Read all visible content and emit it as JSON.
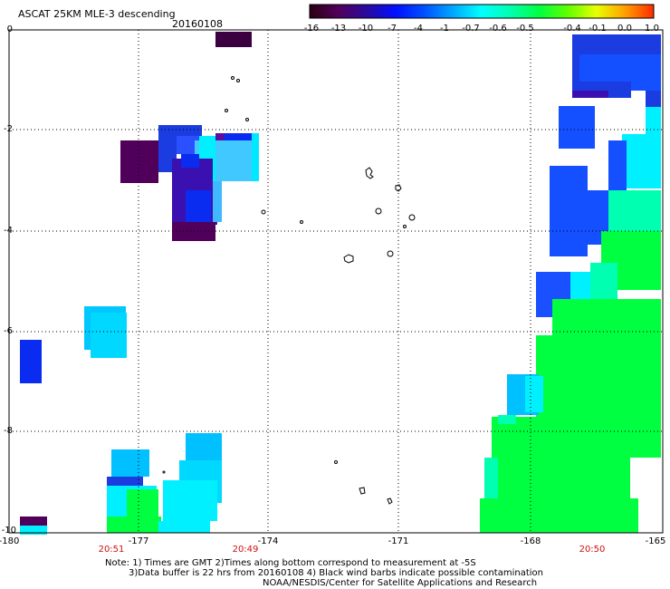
{
  "header": {
    "title": "ASCAT 25KM MLE-3 descending",
    "date": "20160108"
  },
  "colorbar": {
    "labels": [
      "-16",
      "-13",
      "-10",
      "-7",
      "-4",
      "-1",
      "-0.7",
      "-0.6",
      "-0.5",
      "-0.4",
      "-0.1",
      "0.0",
      "1.0"
    ],
    "colors": [
      "#2a0010",
      "#50005a",
      "#2a0aa0",
      "#0010ff",
      "#0050ff",
      "#00a8ff",
      "#00ffff",
      "#00ffb0",
      "#00ff40",
      "#60ff00",
      "#e8ff00",
      "#ffa000",
      "#ff2a00"
    ]
  },
  "axes": {
    "y_labels": [
      "0",
      "-2",
      "-4",
      "-6",
      "-8",
      "-10"
    ],
    "x_labels": [
      "-180",
      "-177",
      "-174",
      "-171",
      "-168",
      "-165"
    ],
    "times": [
      "20:51",
      "20:49",
      "20:50"
    ]
  },
  "notes": {
    "line1": "Note: 1) Times are GMT 2)Times along bottom correspond to measurement at -5S",
    "line2": "3)Data buffer is 22 hrs from 20160108 4) Black wind barbs indicate possible contamination",
    "line3": "NOAA/NESDIS/Center for Satellite Applications and Research"
  },
  "colors": {
    "deep_purple": "#50005a",
    "indigo": "#3a10b0",
    "blue": "#0a2cf0",
    "royal_blue": "#1450ff",
    "sky_blue": "#00c0ff",
    "cyan": "#00f0ff",
    "green": "#00ff40",
    "time_red": "#d01010"
  }
}
